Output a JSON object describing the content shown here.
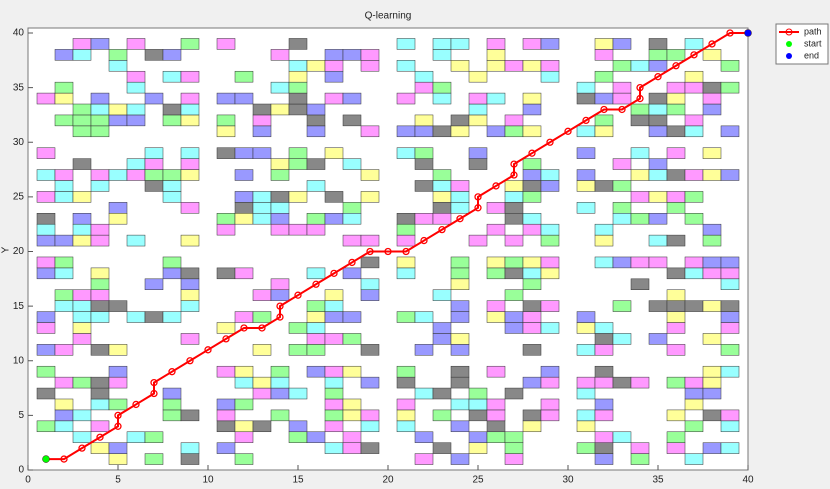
{
  "chart_data": {
    "type": "line",
    "title": "Q-learning",
    "y_label": "Y",
    "xlim": [
      0,
      40
    ],
    "ylim": [
      0,
      40
    ],
    "xticks": [
      0,
      5,
      10,
      15,
      20,
      25,
      30,
      35,
      40
    ],
    "yticks": [
      0,
      5,
      10,
      15,
      20,
      25,
      30,
      35,
      40
    ],
    "legend": "upper right",
    "series": [
      {
        "name": "path",
        "color": "#ff0000",
        "x": [
          1,
          2,
          3,
          4,
          5,
          5,
          6,
          7,
          7,
          8,
          9,
          10,
          11,
          12,
          13,
          14,
          14,
          15,
          16,
          17,
          18,
          19,
          20,
          21,
          22,
          23,
          24,
          25,
          25,
          26,
          27,
          27,
          28,
          29,
          30,
          31,
          32,
          33,
          34,
          34,
          35,
          36,
          37,
          38,
          39,
          40
        ],
        "values": [
          1,
          1,
          2,
          3,
          4,
          5,
          6,
          7,
          8,
          9,
          10,
          11,
          12,
          13,
          13,
          14,
          15,
          16,
          17,
          18,
          19,
          20,
          20,
          20,
          21,
          22,
          23,
          24,
          25,
          26,
          27,
          28,
          29,
          30,
          31,
          32,
          33,
          33,
          34,
          35,
          36,
          37,
          38,
          39,
          40,
          40
        ]
      },
      {
        "name": "start",
        "color": "#00ff00",
        "x": [
          1
        ],
        "values": [
          1
        ]
      },
      {
        "name": "end",
        "color": "#0000ff",
        "x": [
          40
        ],
        "values": [
          40
        ]
      }
    ]
  }
}
